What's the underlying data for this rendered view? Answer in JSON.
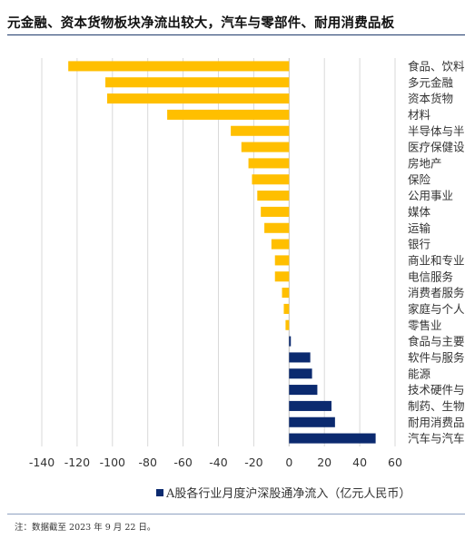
{
  "heading": "元金融、资本货物板块净流出较大，汽车与零部件、耐用消费品板",
  "note": "注：数据截至 2023 年 9 月 22 日。",
  "colors": {
    "positive": "#0b2a6f",
    "negative": "#ffbf00",
    "grid": "#d9d9d9",
    "axis": "#bfbfbf"
  },
  "chart_data": {
    "type": "bar",
    "orientation": "horizontal",
    "legend": "A股各行业月度沪深股通净流入（亿元人民币）",
    "legend_position": "bottom",
    "xlim": [
      -140,
      60
    ],
    "xticks": [
      -140,
      -120,
      -100,
      -80,
      -60,
      -40,
      -20,
      0,
      20,
      40,
      60
    ],
    "grid": true,
    "categories": [
      "食品、饮料",
      "多元金融",
      "资本货物",
      "材料",
      "半导体与半",
      "医疗保健设",
      "房地产",
      "保险",
      "公用事业",
      "媒体",
      "运输",
      "银行",
      "商业和专业",
      "电信服务",
      "消费者服务",
      "家庭与个人",
      "零售业",
      "食品与主要",
      "软件与服务",
      "能源",
      "技术硬件与",
      "制药、生物",
      "耐用消费品",
      "汽车与汽车"
    ],
    "values": [
      -125,
      -104,
      -103,
      -69,
      -33,
      -27,
      -23,
      -21,
      -18,
      -16,
      -14,
      -10,
      -8,
      -8,
      -4,
      -3,
      -2,
      1,
      12,
      13,
      16,
      24,
      26,
      49
    ]
  }
}
